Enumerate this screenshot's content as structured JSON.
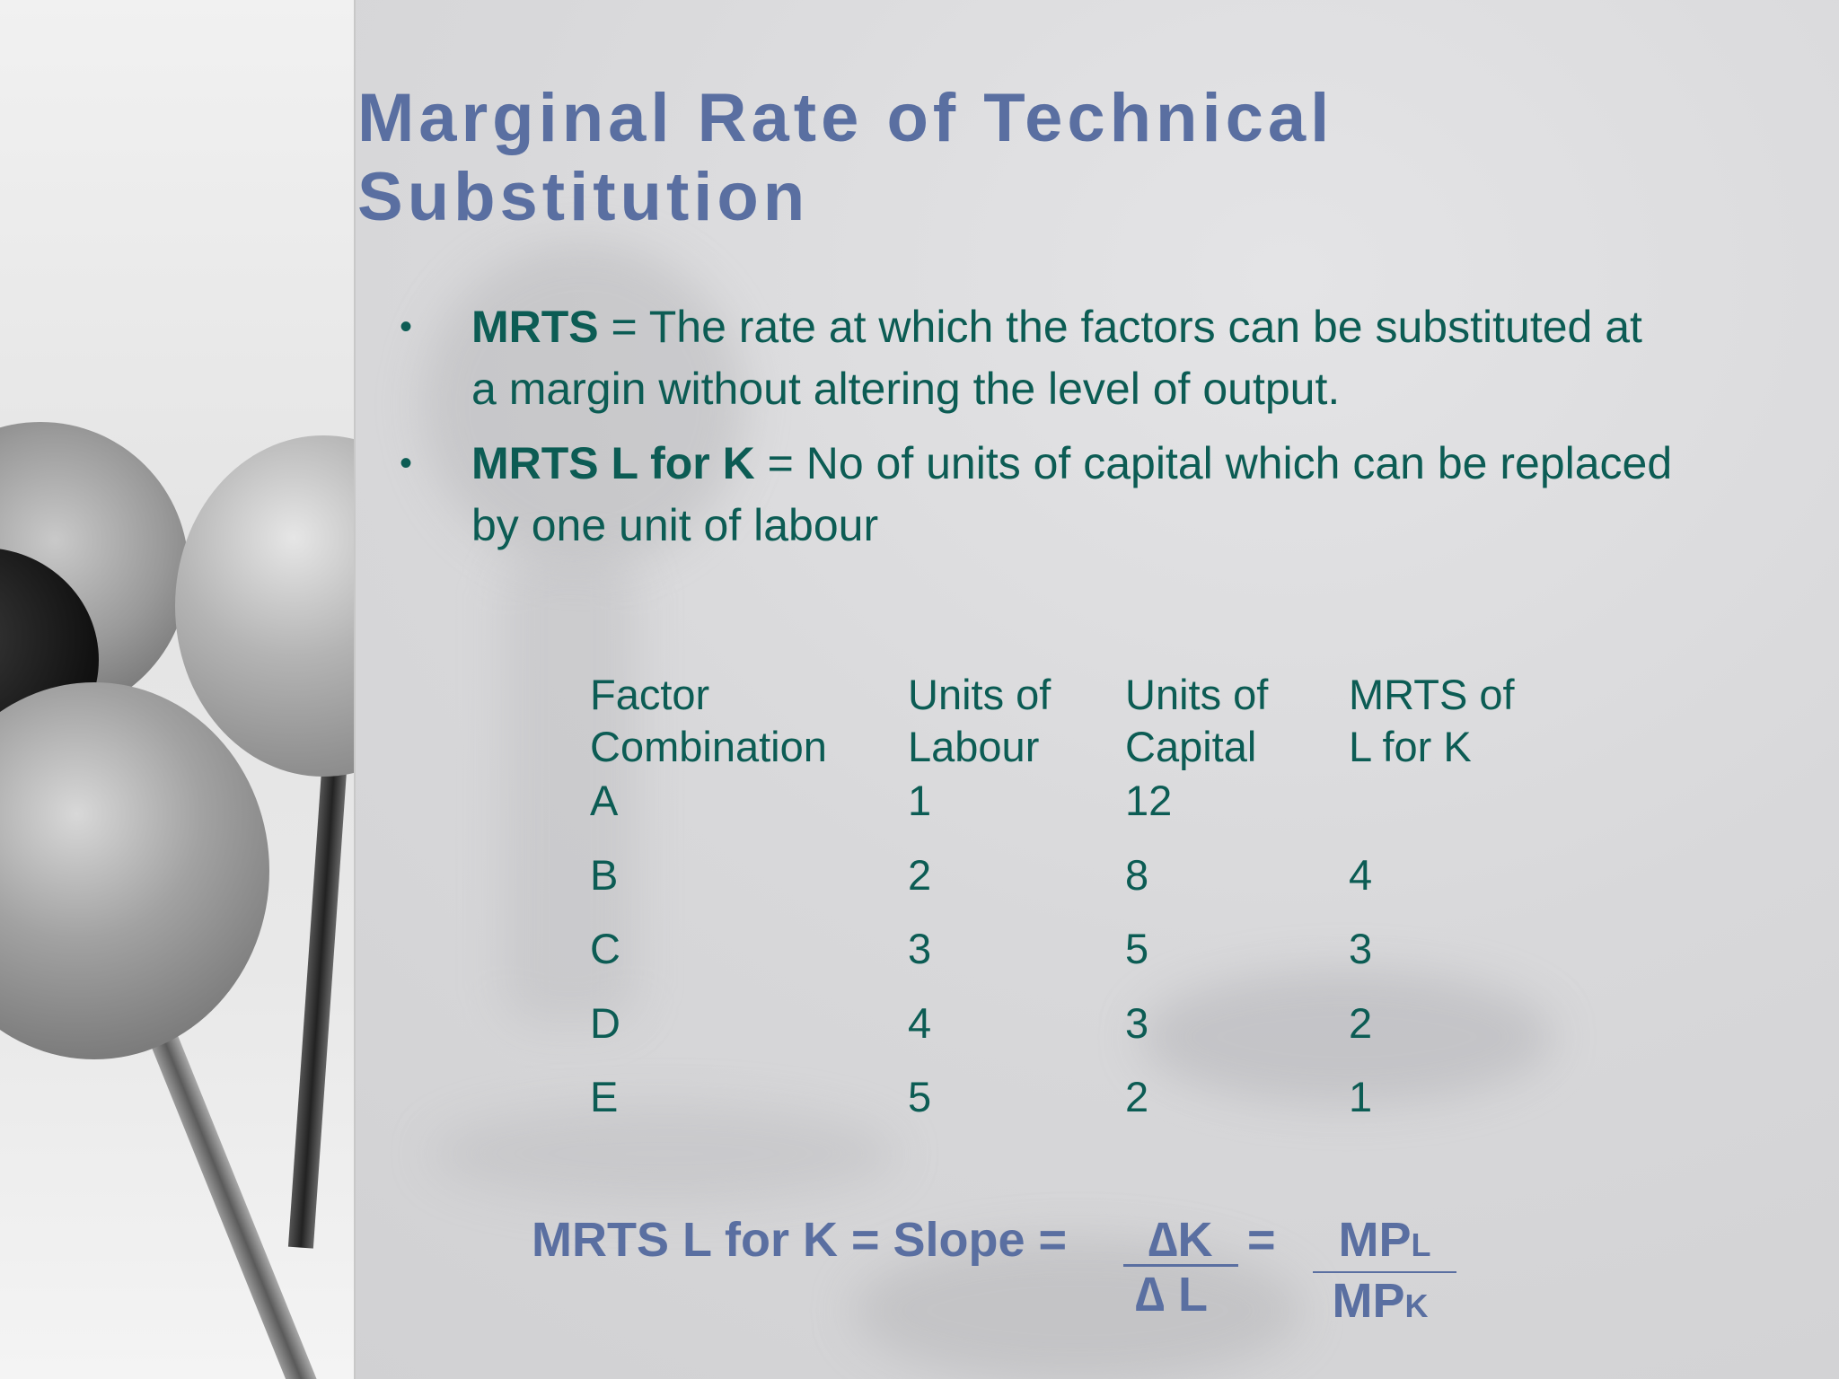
{
  "slide": {
    "title_lines": [
      "Marginal Rate of Technical",
      "Substitution"
    ],
    "bullet_marker": "•",
    "bullets": [
      {
        "term": "MRTS",
        "text": " = The rate at which the factors can be substituted at a margin without altering the level of output."
      },
      {
        "term": "MRTS L for K",
        "text": " = No of units of capital which can be replaced by one unit of labour"
      }
    ],
    "table": {
      "headers": [
        [
          "Factor",
          "Combination"
        ],
        [
          "Units of",
          "Labour"
        ],
        [
          "Units of",
          "Capital"
        ],
        [
          "MRTS of",
          "L for K"
        ]
      ],
      "rows": [
        [
          "A",
          "1",
          "12",
          ""
        ],
        [
          "B",
          "2",
          "8",
          "4"
        ],
        [
          "C",
          "3",
          "5",
          "3"
        ],
        [
          "D",
          "4",
          "3",
          "2"
        ],
        [
          "E",
          "5",
          "2",
          "1"
        ]
      ]
    },
    "formula": {
      "lhs": "MRTS L for K = Slope =",
      "frac1_num": "∆K",
      "frac1_den": "∆ L",
      "equals": "=",
      "frac2_num_main": "MP",
      "frac2_num_sub": "L",
      "frac2_den_main": "MP",
      "frac2_den_sub": "K"
    },
    "colors": {
      "title": "#5a6fa1",
      "body_text": "#0c5c54",
      "formula": "#5a6fa1"
    },
    "decoration": "push-pin-photo"
  }
}
